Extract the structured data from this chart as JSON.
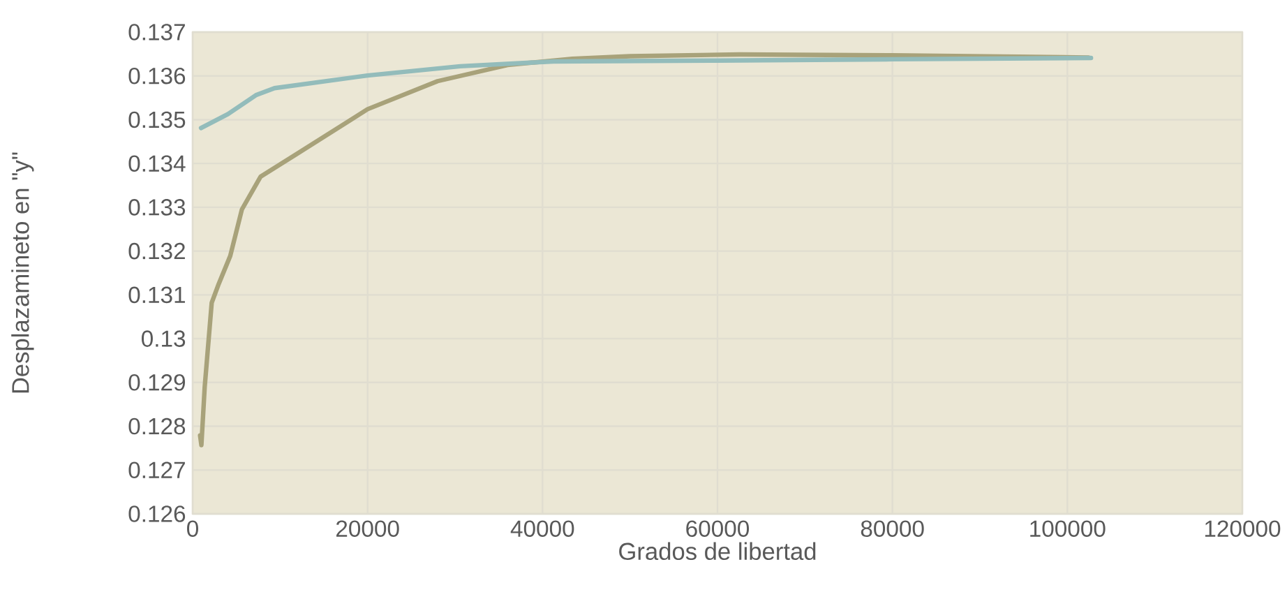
{
  "chart_data": {
    "type": "line",
    "xlabel": "Grados de libertad",
    "ylabel": "Desplazamineto en \"y\"",
    "xlim": [
      0,
      120000
    ],
    "ylim": [
      0.126,
      0.137
    ],
    "xticks": [
      0,
      20000,
      40000,
      60000,
      80000,
      100000,
      120000
    ],
    "yticks": [
      0.126,
      0.127,
      0.128,
      0.129,
      0.13,
      0.131,
      0.132,
      0.133,
      0.134,
      0.135,
      0.136,
      0.137
    ],
    "grid": true,
    "marker": "none",
    "line_style": "solid",
    "series": [
      {
        "color": "#a8a27a",
        "x": [
          850,
          1000,
          1380,
          2180,
          2980,
          4300,
          5630,
          7770,
          12000,
          20000,
          28000,
          36000,
          43400,
          50000,
          62500,
          80000,
          102400
        ],
        "values": [
          0.12779,
          0.12757,
          0.1289,
          0.13082,
          0.13125,
          0.13189,
          0.13295,
          0.1337,
          0.13423,
          0.13524,
          0.13588,
          0.13625,
          0.13639,
          0.13645,
          0.13649,
          0.13647,
          0.13642
        ]
      },
      {
        "color": "#93bcbb",
        "x": [
          960,
          4040,
          7230,
          9360,
          20000,
          30600,
          41260,
          60000,
          80000,
          102700
        ],
        "values": [
          0.13481,
          0.13513,
          0.13556,
          0.13572,
          0.13601,
          0.13622,
          0.13633,
          0.13635,
          0.13638,
          0.13641
        ]
      }
    ]
  }
}
